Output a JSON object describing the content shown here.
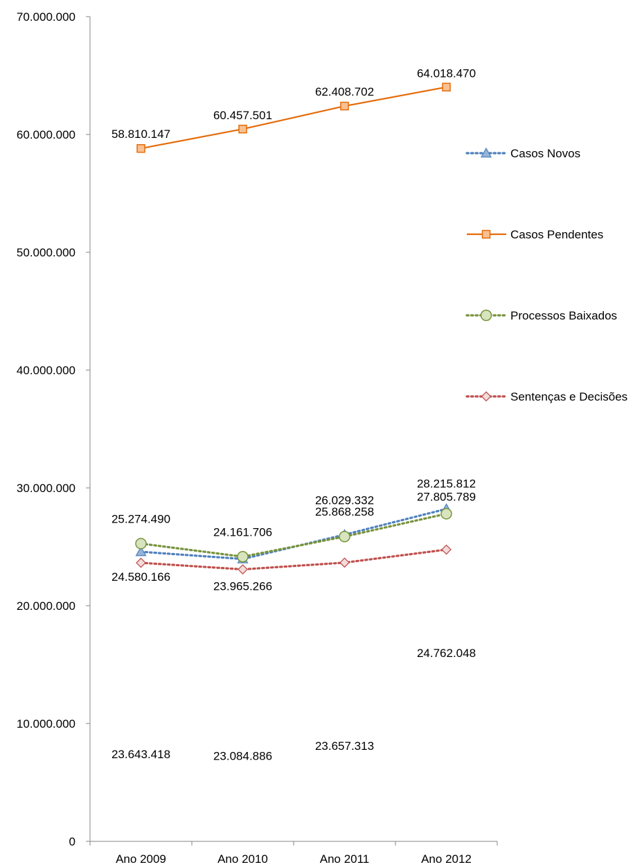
{
  "chart_data": {
    "type": "line",
    "categories": [
      "Ano 2009",
      "Ano 2010",
      "Ano 2011",
      "Ano 2012"
    ],
    "ylim": [
      0,
      70000000
    ],
    "y_ticks": [
      0,
      10000000,
      20000000,
      30000000,
      40000000,
      50000000,
      60000000,
      70000000
    ],
    "y_tick_labels": [
      "0",
      "10.000.000",
      "20.000.000",
      "30.000.000",
      "40.000.000",
      "50.000.000",
      "60.000.000",
      "70.000.000"
    ],
    "grid": false,
    "legend_position": "right",
    "series": [
      {
        "name": "Casos Novos",
        "color": "#4F81BD",
        "line": "dotted",
        "marker": "triangle",
        "values": [
          24580166,
          23965266,
          26029332,
          28215812
        ],
        "labels": [
          "24.580.166",
          "23.965.266",
          "26.029.332",
          "28.215.812"
        ]
      },
      {
        "name": "Casos Pendentes",
        "color": "#E46C0A",
        "line": "solid",
        "marker": "square",
        "values": [
          58810147,
          60457501,
          62408702,
          64018470
        ],
        "labels": [
          "58.810.147",
          "60.457.501",
          "62.408.702",
          "64.018.470"
        ]
      },
      {
        "name": "Processos Baixados",
        "color": "#77933C",
        "line": "dotted",
        "marker": "circle",
        "values": [
          25274490,
          24161706,
          25868258,
          27805789
        ],
        "labels": [
          "25.274.490",
          "24.161.706",
          "25.868.258",
          "27.805.789"
        ]
      },
      {
        "name": "Sentenças e Decisões",
        "color": "#C0504D",
        "line": "dotted",
        "marker": "diamond",
        "values": [
          23643418,
          23084886,
          23657313,
          24762048
        ],
        "labels": [
          "23.643.418",
          "23.084.886",
          "23.657.313",
          "24.762.048"
        ]
      }
    ]
  }
}
